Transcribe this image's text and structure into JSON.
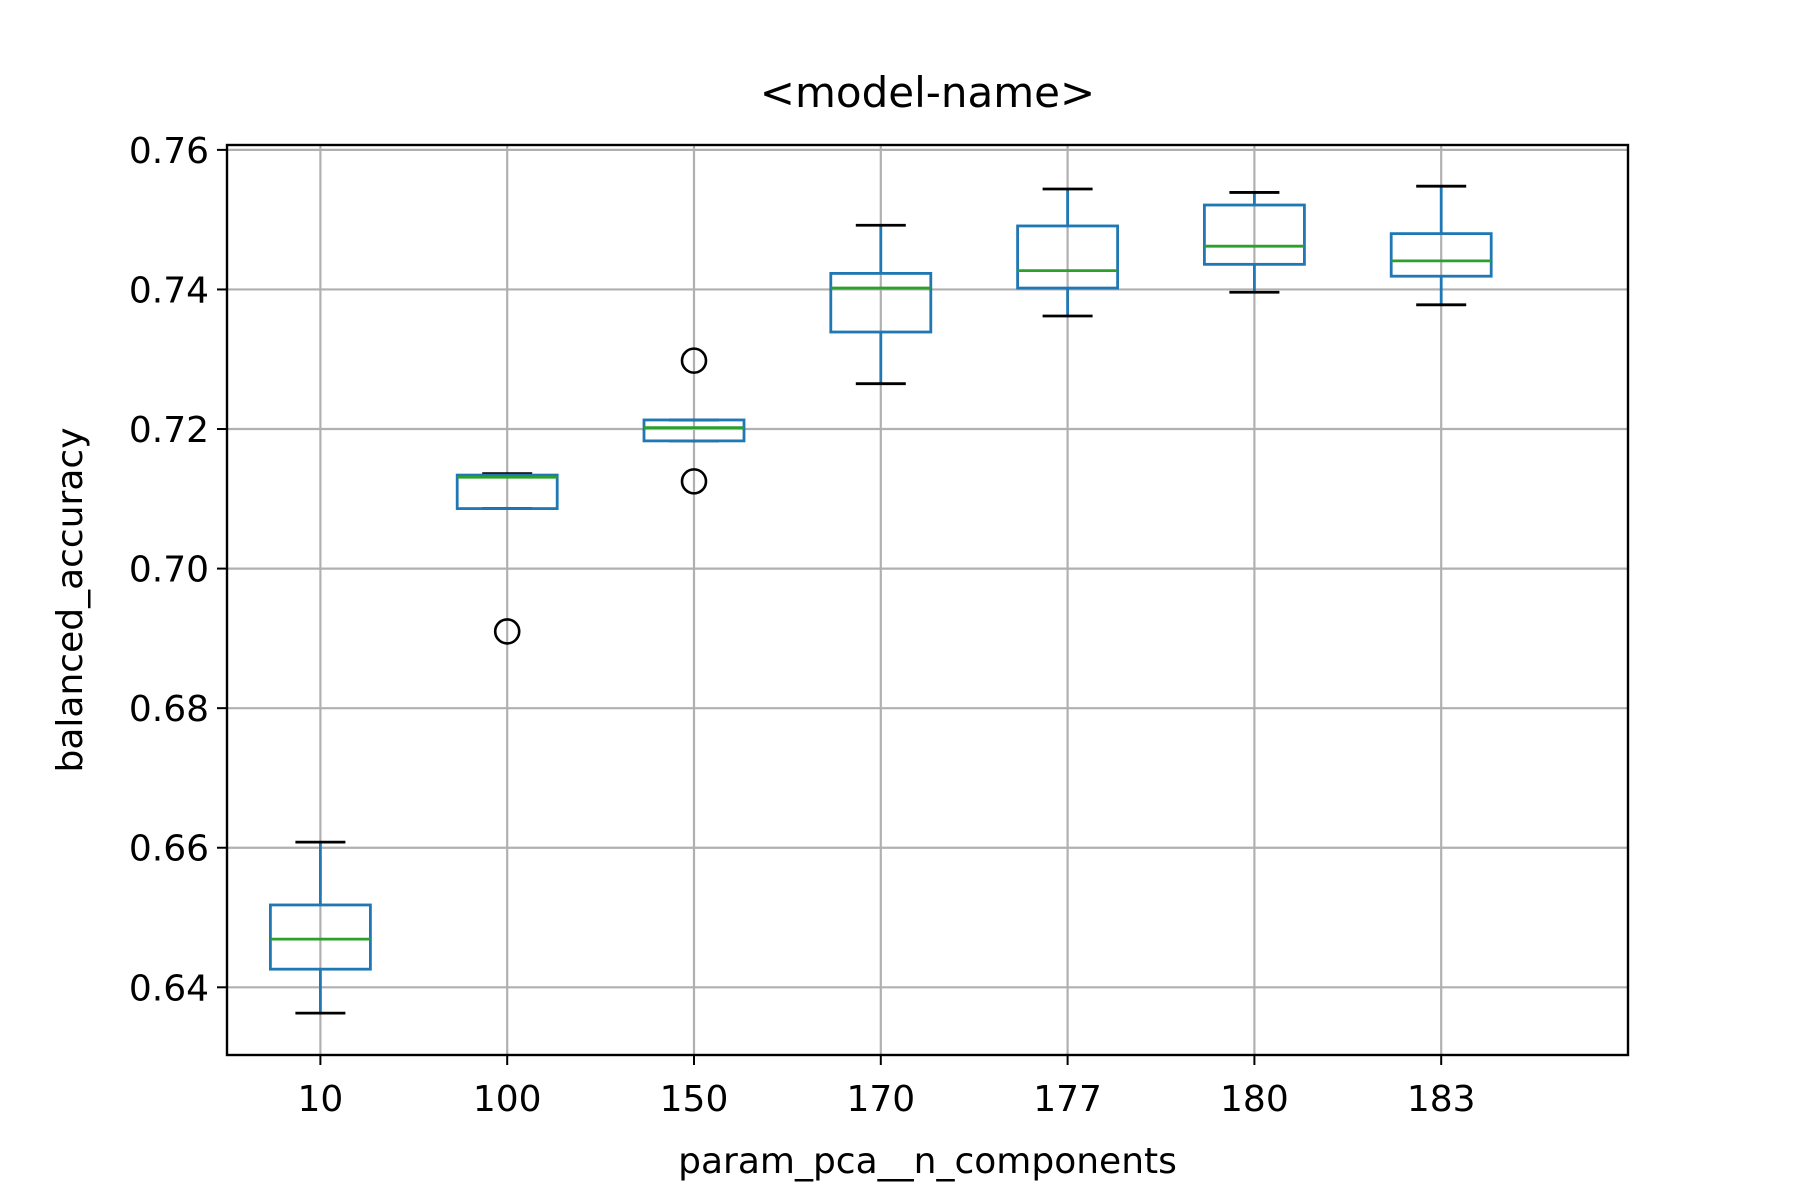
{
  "chart_data": {
    "type": "box",
    "title": "<model-name>",
    "xlabel": "param_pca__n_components",
    "ylabel": "balanced_accuracy",
    "ylim": [
      0.6303,
      0.7607
    ],
    "yticks": [
      0.64,
      0.66,
      0.68,
      0.7,
      0.72,
      0.74,
      0.76
    ],
    "ytick_labels": [
      "0.64",
      "0.66",
      "0.68",
      "0.70",
      "0.72",
      "0.74",
      "0.76"
    ],
    "grid": true,
    "categories": [
      "10",
      "100",
      "150",
      "170",
      "177",
      "180",
      "183"
    ],
    "boxes": [
      {
        "category": "10",
        "whisker_low": 0.6363,
        "q1": 0.6426,
        "median": 0.6469,
        "q3": 0.6518,
        "whisker_high": 0.6608,
        "outliers": []
      },
      {
        "category": "100",
        "whisker_low": 0.7086,
        "q1": 0.7086,
        "median": 0.7131,
        "q3": 0.7134,
        "whisker_high": 0.7136,
        "outliers": [
          0.691
        ]
      },
      {
        "category": "150",
        "whisker_low": 0.7183,
        "q1": 0.7183,
        "median": 0.7202,
        "q3": 0.7213,
        "whisker_high": 0.7213,
        "outliers": [
          0.7298,
          0.7125
        ]
      },
      {
        "category": "170",
        "whisker_low": 0.7265,
        "q1": 0.7339,
        "median": 0.7402,
        "q3": 0.7423,
        "whisker_high": 0.7492,
        "outliers": []
      },
      {
        "category": "177",
        "whisker_low": 0.7362,
        "q1": 0.7402,
        "median": 0.7427,
        "q3": 0.7491,
        "whisker_high": 0.7544,
        "outliers": []
      },
      {
        "category": "180",
        "whisker_low": 0.7396,
        "q1": 0.7436,
        "median": 0.7462,
        "q3": 0.7521,
        "whisker_high": 0.7539,
        "outliers": []
      },
      {
        "category": "183",
        "whisker_low": 0.7378,
        "q1": 0.7419,
        "median": 0.7441,
        "q3": 0.748,
        "whisker_high": 0.7548,
        "outliers": []
      }
    ],
    "colors": {
      "box": "#1f77b4",
      "median": "#2ca02c",
      "caps": "#000000",
      "outlier": "#000000",
      "grid": "#b0b0b0"
    }
  }
}
